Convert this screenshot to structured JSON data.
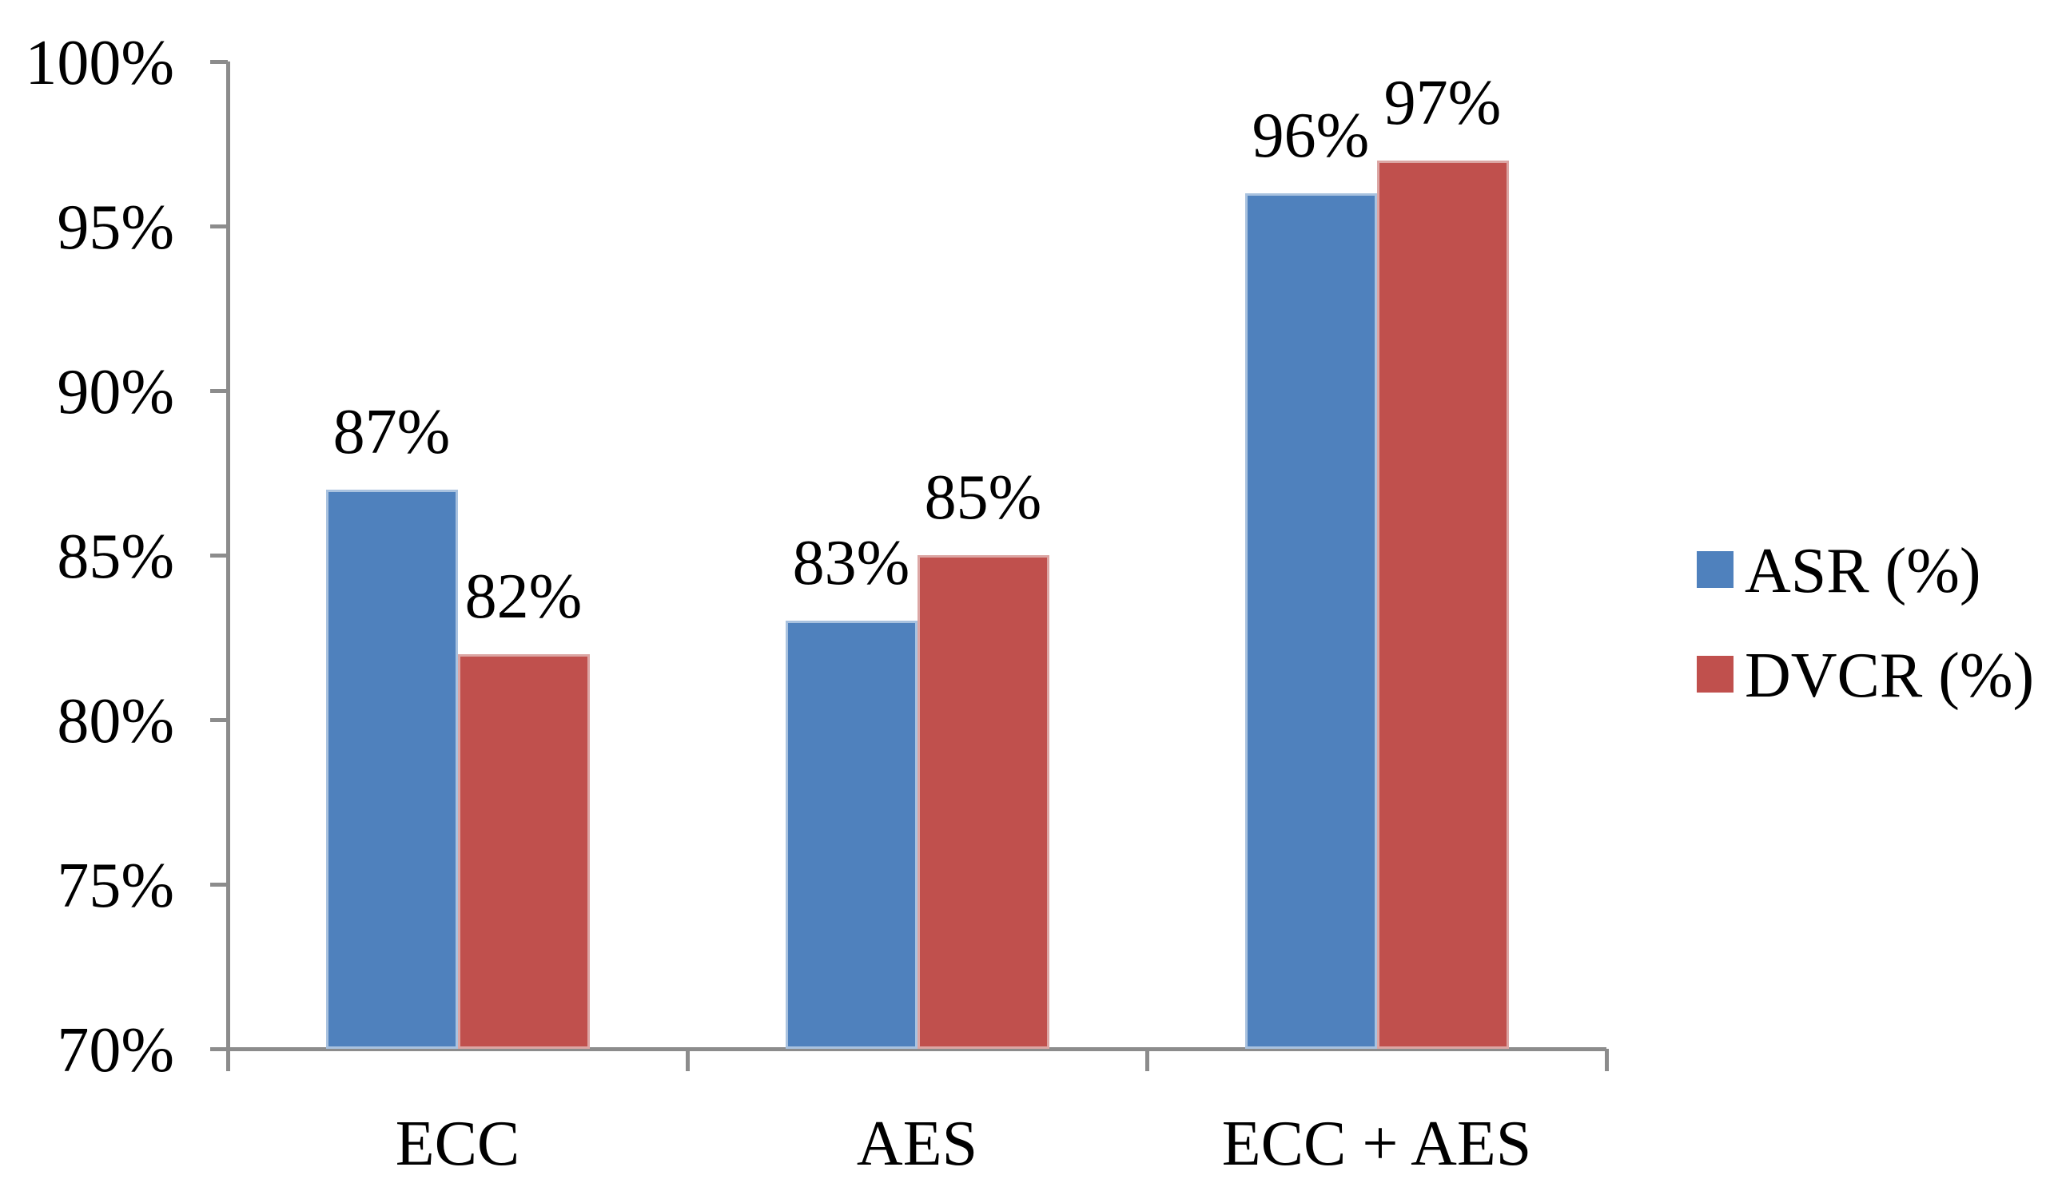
{
  "chart_data": {
    "type": "bar",
    "title": "",
    "categories": [
      "ECC",
      "AES",
      "ECC + AES"
    ],
    "series": [
      {
        "name": "ASR (%)",
        "color": "#4F81BD",
        "border_color": "#A9C2DF",
        "values": [
          87,
          83,
          96
        ],
        "labels": [
          "87%",
          "83%",
          "96%"
        ]
      },
      {
        "name": "DVCR (%)",
        "color": "#C0504D",
        "border_color": "#DCA6A4",
        "values": [
          82,
          85,
          97
        ],
        "labels": [
          "82%",
          "85%",
          "97%"
        ]
      }
    ],
    "y_axis": {
      "min": 70,
      "max": 100,
      "step": 5,
      "tick_labels": [
        "70%",
        "75%",
        "80%",
        "85%",
        "90%",
        "95%",
        "100%"
      ]
    },
    "x_axis": {
      "tick_labels": [
        "ECC",
        "AES",
        "ECC + AES"
      ]
    },
    "legend": {
      "position": "right",
      "items": [
        "ASR (%)",
        "DVCR (%)"
      ]
    },
    "grid": false,
    "data_labels_shown": true,
    "axis_color": "#8C8C8C",
    "text_color": "#000000",
    "background_color": "#FFFFFF"
  }
}
